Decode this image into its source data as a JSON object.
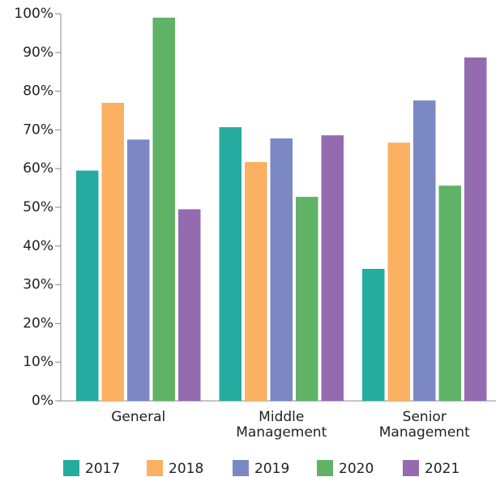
{
  "chart_data": {
    "type": "bar",
    "categories": [
      "General",
      "Middle Management",
      "Senior Management"
    ],
    "series": [
      {
        "name": "2017",
        "color": "#26aba0",
        "values": [
          59.5,
          70.7,
          34.1
        ]
      },
      {
        "name": "2018",
        "color": "#fbb161",
        "values": [
          77,
          61.7,
          66.7
        ]
      },
      {
        "name": "2019",
        "color": "#7b88c4",
        "values": [
          67.5,
          67.8,
          77.6
        ]
      },
      {
        "name": "2020",
        "color": "#5fb266",
        "values": [
          99,
          52.7,
          55.6
        ]
      },
      {
        "name": "2021",
        "color": "#946bb0",
        "values": [
          49.5,
          68.6,
          88.7
        ]
      }
    ],
    "ylim": [
      0,
      100
    ],
    "yticks": [
      {
        "value": 0,
        "label": "0%"
      },
      {
        "value": 10,
        "label": "10%"
      },
      {
        "value": 20,
        "label": "20%"
      },
      {
        "value": 30,
        "label": "30%"
      },
      {
        "value": 40,
        "label": "40%"
      },
      {
        "value": 50,
        "label": "50%"
      },
      {
        "value": 60,
        "label": "60%"
      },
      {
        "value": 70,
        "label": "70%"
      },
      {
        "value": 80,
        "label": "80%"
      },
      {
        "value": 90,
        "label": "90%"
      },
      {
        "value": 100,
        "label": "100%"
      }
    ],
    "legend": "bottom"
  }
}
